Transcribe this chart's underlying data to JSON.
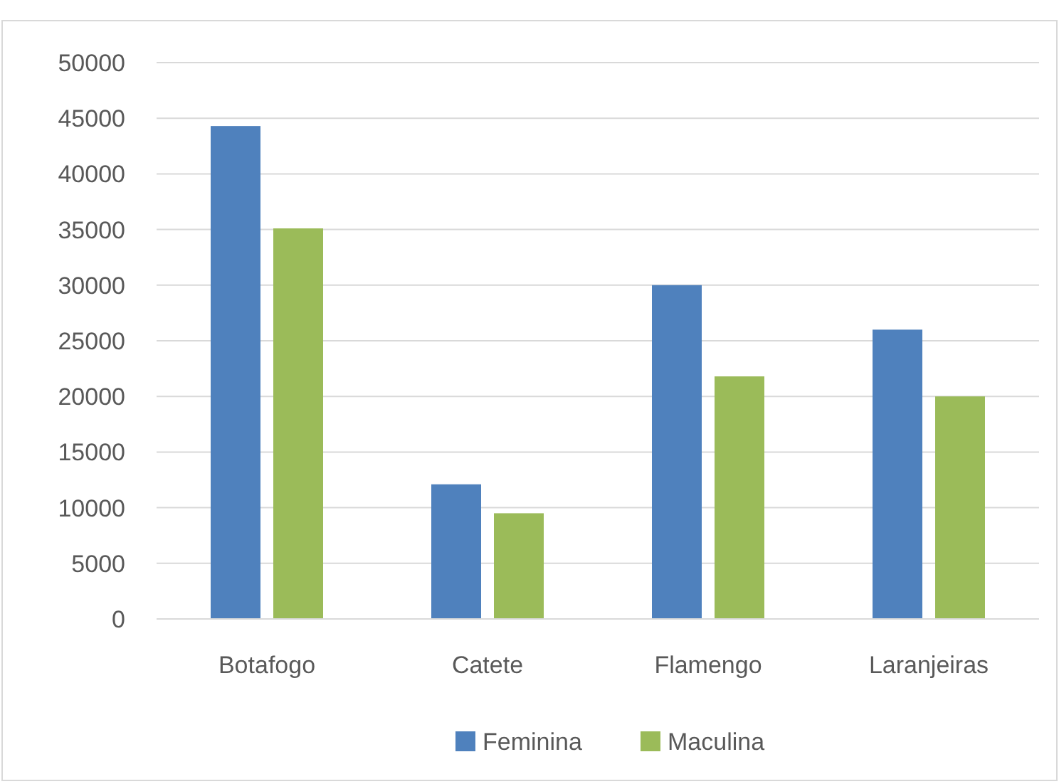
{
  "chart_data": {
    "type": "bar",
    "categories": [
      "Botafogo",
      "Catete",
      "Flamengo",
      "Laranjeiras"
    ],
    "series": [
      {
        "name": "Feminina",
        "color": "#4f81bd",
        "values": [
          44300,
          12100,
          30000,
          26000
        ]
      },
      {
        "name": "Maculina",
        "color": "#9bbb59",
        "values": [
          35100,
          9500,
          21800,
          20000
        ]
      }
    ],
    "ylim": [
      0,
      50000
    ],
    "yticks": [
      0,
      5000,
      10000,
      15000,
      20000,
      25000,
      30000,
      35000,
      40000,
      45000,
      50000
    ],
    "grid": "y",
    "legend": "bottom"
  }
}
